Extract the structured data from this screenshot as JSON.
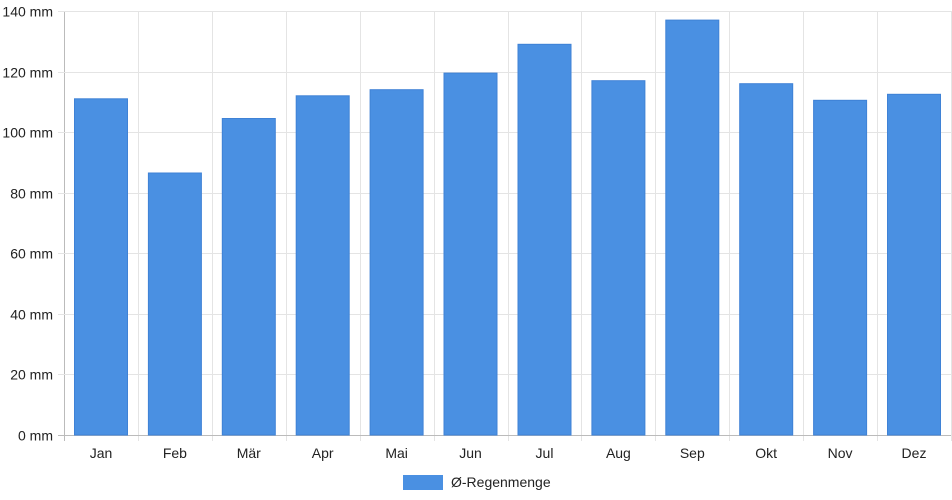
{
  "chart_data": {
    "type": "bar",
    "categories": [
      "Jan",
      "Feb",
      "Mär",
      "Apr",
      "Mai",
      "Jun",
      "Jul",
      "Aug",
      "Sep",
      "Okt",
      "Nov",
      "Dez"
    ],
    "series": [
      {
        "name": "Ø-Regenmenge",
        "color": "#4a90e2",
        "values": [
          111,
          86.5,
          104.5,
          112,
          114,
          119.5,
          129,
          117,
          137,
          116,
          110.5,
          112.5
        ]
      }
    ],
    "y_ticks": [
      "0 mm",
      "20 mm",
      "40 mm",
      "60 mm",
      "80 mm",
      "100 mm",
      "120 mm",
      "140 mm"
    ],
    "ylim": [
      0,
      140
    ],
    "grid": true,
    "legend_position": "bottom-center"
  }
}
